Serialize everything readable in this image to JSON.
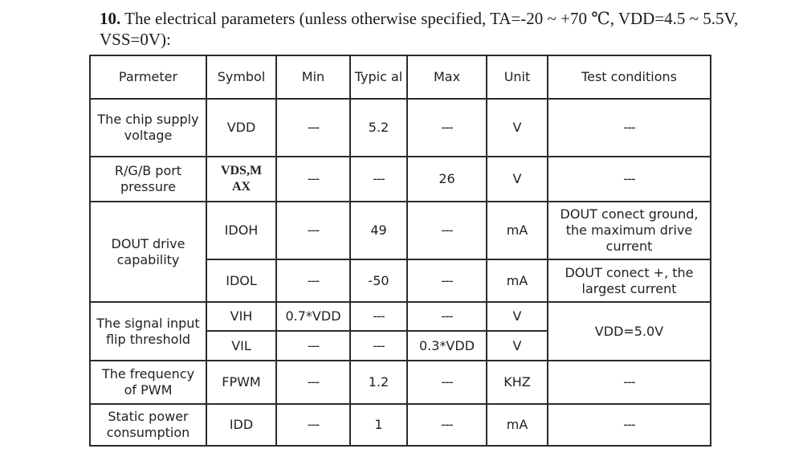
{
  "heading": {
    "number": "10.",
    "text": " The electrical parameters (unless otherwise specified, TA=-20 ~ +70 ℃, VDD=4.5 ~ 5.5V, VSS=0V):"
  },
  "table": {
    "headers": {
      "parameter": "Parmeter",
      "symbol": "Symbol",
      "min": "Min",
      "typical": "Typic al",
      "max": "Max",
      "unit": "Unit",
      "test_conditions": "Test conditions"
    },
    "rows": {
      "supply": {
        "parameter": "The chip supply voltage",
        "symbol": "VDD",
        "min": "---",
        "typical": "5.2",
        "max": "---",
        "unit": "V",
        "test": "---"
      },
      "rgb": {
        "parameter": "R/G/B port pressure",
        "symbol": "VDS,M AX",
        "min": "---",
        "typical": "---",
        "max": "26",
        "unit": "V",
        "test": "---"
      },
      "dout": {
        "parameter": "DOUT drive capability",
        "idoh": {
          "symbol": "IDOH",
          "min": "---",
          "typical": "49",
          "max": "---",
          "unit": "mA",
          "test": "DOUT conect ground, the maximum drive current"
        },
        "idol": {
          "symbol": "IDOL",
          "min": "---",
          "typical": "-50",
          "max": "---",
          "unit": "mA",
          "test": "DOUT conect +, the largest current"
        }
      },
      "threshold": {
        "parameter": "The signal input flip threshold",
        "test": "VDD=5.0V",
        "vih": {
          "symbol": "VIH",
          "min": "0.7*VDD",
          "typical": "---",
          "max": "---",
          "unit": "V"
        },
        "vil": {
          "symbol": "VIL",
          "min": "---",
          "typical": "---",
          "max": "0.3*VDD",
          "unit": "V"
        }
      },
      "pwm": {
        "parameter": "The frequency of PWM",
        "symbol": "FPWM",
        "min": "---",
        "typical": "1.2",
        "max": "---",
        "unit": "KHZ",
        "test": "---"
      },
      "static": {
        "parameter": "Static power consumption",
        "symbol": "IDD",
        "min": "---",
        "typical": "1",
        "max": "---",
        "unit": "mA",
        "test": "---"
      }
    }
  }
}
